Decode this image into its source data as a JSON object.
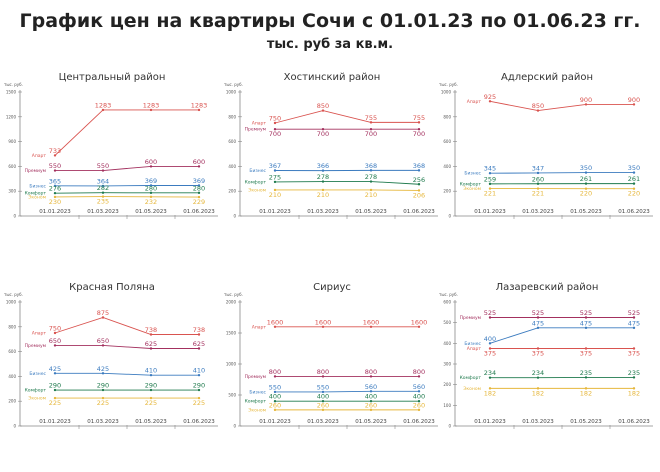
{
  "header": {
    "title": "График цен на квартиры Сочи с 01.01.23 по 01.06.23 гг.",
    "subtitle": "тыс. руб за кв.м."
  },
  "colors": {
    "Апарт": "#d9534f",
    "Премиум": "#a3305e",
    "Бизнес": "#3b7bbf",
    "Комфорт": "#1f7a4d",
    "Эконом": "#e6b73c"
  },
  "chart_data": [
    {
      "type": "line",
      "title": "Центральный район",
      "ylabel": "тыс. руб.",
      "ylim": [
        0,
        1500
      ],
      "yticks": [
        0,
        300,
        600,
        900,
        1200,
        1500
      ],
      "categories": [
        "01.01.2023",
        "01.03.2023",
        "01.05.2023",
        "01.06.2023"
      ],
      "series": [
        {
          "name": "Апарт",
          "values": [
            733,
            1283,
            1283,
            1283
          ]
        },
        {
          "name": "Премиум",
          "values": [
            550,
            550,
            600,
            600
          ]
        },
        {
          "name": "Бизнес",
          "values": [
            365,
            364,
            369,
            369
          ]
        },
        {
          "name": "Комфорт",
          "values": [
            276,
            282,
            280,
            280
          ]
        },
        {
          "name": "Эконом",
          "values": [
            230,
            235,
            232,
            229
          ]
        }
      ]
    },
    {
      "type": "line",
      "title": "Хостинский район",
      "ylabel": "тыс. руб.",
      "ylim": [
        0,
        1000
      ],
      "yticks": [
        0,
        200,
        400,
        600,
        800,
        1000
      ],
      "categories": [
        "01.01.2023",
        "01.03.2023",
        "01.05.2023",
        "01.06.2023"
      ],
      "series": [
        {
          "name": "Апарт",
          "values": [
            750,
            850,
            755,
            755
          ]
        },
        {
          "name": "Премиум",
          "values": [
            700,
            700,
            700,
            700
          ]
        },
        {
          "name": "Бизнес",
          "values": [
            367,
            366,
            368,
            368
          ]
        },
        {
          "name": "Комфорт",
          "values": [
            275,
            278,
            278,
            256
          ]
        },
        {
          "name": "Эконом",
          "values": [
            210,
            210,
            210,
            206
          ]
        }
      ]
    },
    {
      "type": "line",
      "title": "Адлерский район",
      "ylabel": "тыс. руб.",
      "ylim": [
        0,
        1000
      ],
      "yticks": [
        0,
        200,
        400,
        600,
        800,
        1000
      ],
      "categories": [
        "01.01.2023",
        "01.03.2023",
        "01.05.2023",
        "01.06.2023"
      ],
      "series": [
        {
          "name": "Апарт",
          "values": [
            925,
            850,
            900,
            900
          ]
        },
        {
          "name": "Бизнес",
          "values": [
            345,
            347,
            350,
            350
          ]
        },
        {
          "name": "Комфорт",
          "values": [
            259,
            260,
            261,
            261
          ]
        },
        {
          "name": "Эконом",
          "values": [
            221,
            221,
            220,
            220
          ]
        }
      ]
    },
    {
      "type": "line",
      "title": "Красная Поляна",
      "ylabel": "тыс. руб.",
      "ylim": [
        0,
        1000
      ],
      "yticks": [
        0,
        200,
        400,
        600,
        800,
        1000
      ],
      "categories": [
        "01.01.2023",
        "01.03.2023",
        "01.05.2023",
        "01.06.2023"
      ],
      "series": [
        {
          "name": "Апарт",
          "values": [
            750,
            875,
            738,
            738
          ]
        },
        {
          "name": "Премиум",
          "values": [
            650,
            650,
            625,
            625
          ]
        },
        {
          "name": "Бизнес",
          "values": [
            425,
            425,
            410,
            410
          ]
        },
        {
          "name": "Комфорт",
          "values": [
            290,
            290,
            290,
            290
          ]
        },
        {
          "name": "Эконом",
          "values": [
            225,
            225,
            225,
            225
          ]
        }
      ]
    },
    {
      "type": "line",
      "title": "Сириус",
      "ylabel": "тыс. руб.",
      "ylim": [
        0,
        2000
      ],
      "yticks": [
        0,
        500,
        1000,
        1500,
        2000
      ],
      "categories": [
        "01.01.2023",
        "01.03.2023",
        "01.05.2023",
        "01.06.2023"
      ],
      "series": [
        {
          "name": "Апарт",
          "values": [
            1600,
            1600,
            1600,
            1600
          ]
        },
        {
          "name": "Премиум",
          "values": [
            800,
            800,
            800,
            800
          ]
        },
        {
          "name": "Бизнес",
          "values": [
            550,
            550,
            560,
            560
          ]
        },
        {
          "name": "Комфорт",
          "values": [
            400,
            400,
            400,
            400
          ]
        },
        {
          "name": "Эконом",
          "values": [
            260,
            260,
            260,
            260
          ]
        }
      ]
    },
    {
      "type": "line",
      "title": "Лазаревский район",
      "ylabel": "тыс. руб.",
      "ylim": [
        0,
        600
      ],
      "yticks": [
        0,
        100,
        200,
        300,
        400,
        500,
        600
      ],
      "categories": [
        "01.01.2023",
        "01.03.2023",
        "01.05.2023",
        "01.06.2023"
      ],
      "series": [
        {
          "name": "Премиум",
          "values": [
            525,
            525,
            525,
            525
          ]
        },
        {
          "name": "Бизнес",
          "values": [
            400,
            475,
            475,
            475
          ]
        },
        {
          "name": "Апарт",
          "values": [
            375,
            375,
            375,
            375
          ]
        },
        {
          "name": "Комфорт",
          "values": [
            234,
            234,
            235,
            235
          ]
        },
        {
          "name": "Эконом",
          "values": [
            182,
            182,
            182,
            182
          ]
        }
      ]
    }
  ]
}
